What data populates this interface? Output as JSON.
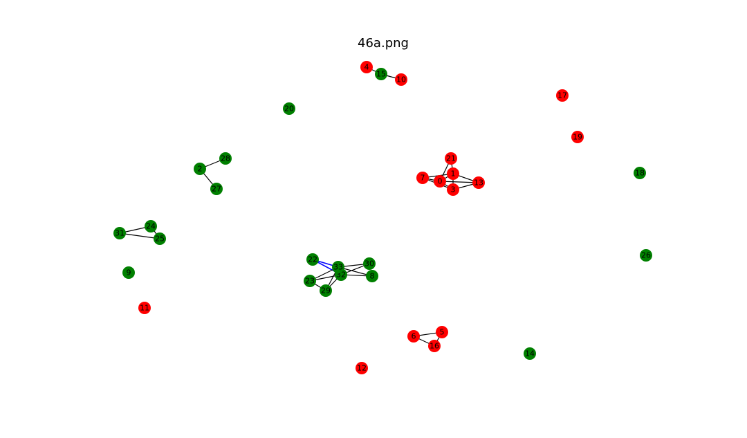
{
  "title": "46a.png",
  "colors": {
    "red": "#ff0000",
    "green": "#008000",
    "edge": "#000000",
    "highlight": "#0000ff"
  },
  "nodes": [
    {
      "id": "0",
      "color": "red"
    },
    {
      "id": "1",
      "color": "red"
    },
    {
      "id": "2",
      "color": "green"
    },
    {
      "id": "3",
      "color": "red"
    },
    {
      "id": "4",
      "color": "red"
    },
    {
      "id": "5",
      "color": "red"
    },
    {
      "id": "6",
      "color": "red"
    },
    {
      "id": "7",
      "color": "red"
    },
    {
      "id": "8",
      "color": "green"
    },
    {
      "id": "9",
      "color": "green"
    },
    {
      "id": "10",
      "color": "red"
    },
    {
      "id": "11",
      "color": "red"
    },
    {
      "id": "12",
      "color": "red"
    },
    {
      "id": "13",
      "color": "red"
    },
    {
      "id": "14",
      "color": "green"
    },
    {
      "id": "15",
      "color": "green"
    },
    {
      "id": "16",
      "color": "red"
    },
    {
      "id": "17",
      "color": "red"
    },
    {
      "id": "18",
      "color": "green"
    },
    {
      "id": "19",
      "color": "red"
    },
    {
      "id": "20",
      "color": "green"
    },
    {
      "id": "21",
      "color": "red"
    },
    {
      "id": "22",
      "color": "green"
    },
    {
      "id": "23",
      "color": "green"
    },
    {
      "id": "24",
      "color": "green"
    },
    {
      "id": "25",
      "color": "green"
    },
    {
      "id": "26",
      "color": "green"
    },
    {
      "id": "27",
      "color": "green"
    },
    {
      "id": "28",
      "color": "green"
    },
    {
      "id": "29",
      "color": "green"
    },
    {
      "id": "30",
      "color": "green"
    },
    {
      "id": "31",
      "color": "green"
    },
    {
      "id": "32",
      "color": "green"
    },
    {
      "id": "33",
      "color": "green"
    }
  ],
  "edges": [
    {
      "from": "4",
      "to": "15"
    },
    {
      "from": "15",
      "to": "10"
    },
    {
      "from": "2",
      "to": "28"
    },
    {
      "from": "2",
      "to": "27"
    },
    {
      "from": "21",
      "to": "1"
    },
    {
      "from": "21",
      "to": "0"
    },
    {
      "from": "7",
      "to": "1"
    },
    {
      "from": "7",
      "to": "0"
    },
    {
      "from": "7",
      "to": "3"
    },
    {
      "from": "0",
      "to": "1"
    },
    {
      "from": "0",
      "to": "3"
    },
    {
      "from": "0",
      "to": "13"
    },
    {
      "from": "1",
      "to": "13"
    },
    {
      "from": "1",
      "to": "3"
    },
    {
      "from": "3",
      "to": "13"
    },
    {
      "from": "31",
      "to": "24"
    },
    {
      "from": "31",
      "to": "25"
    },
    {
      "from": "24",
      "to": "25"
    },
    {
      "from": "22",
      "to": "33",
      "highlight": true
    },
    {
      "from": "22",
      "to": "32",
      "highlight": true
    },
    {
      "from": "33",
      "to": "30"
    },
    {
      "from": "33",
      "to": "8"
    },
    {
      "from": "33",
      "to": "23"
    },
    {
      "from": "33",
      "to": "29"
    },
    {
      "from": "33",
      "to": "32"
    },
    {
      "from": "32",
      "to": "30"
    },
    {
      "from": "32",
      "to": "8"
    },
    {
      "from": "32",
      "to": "23"
    },
    {
      "from": "32",
      "to": "29"
    },
    {
      "from": "23",
      "to": "29"
    },
    {
      "from": "6",
      "to": "5"
    },
    {
      "from": "6",
      "to": "16"
    },
    {
      "from": "5",
      "to": "16"
    }
  ]
}
